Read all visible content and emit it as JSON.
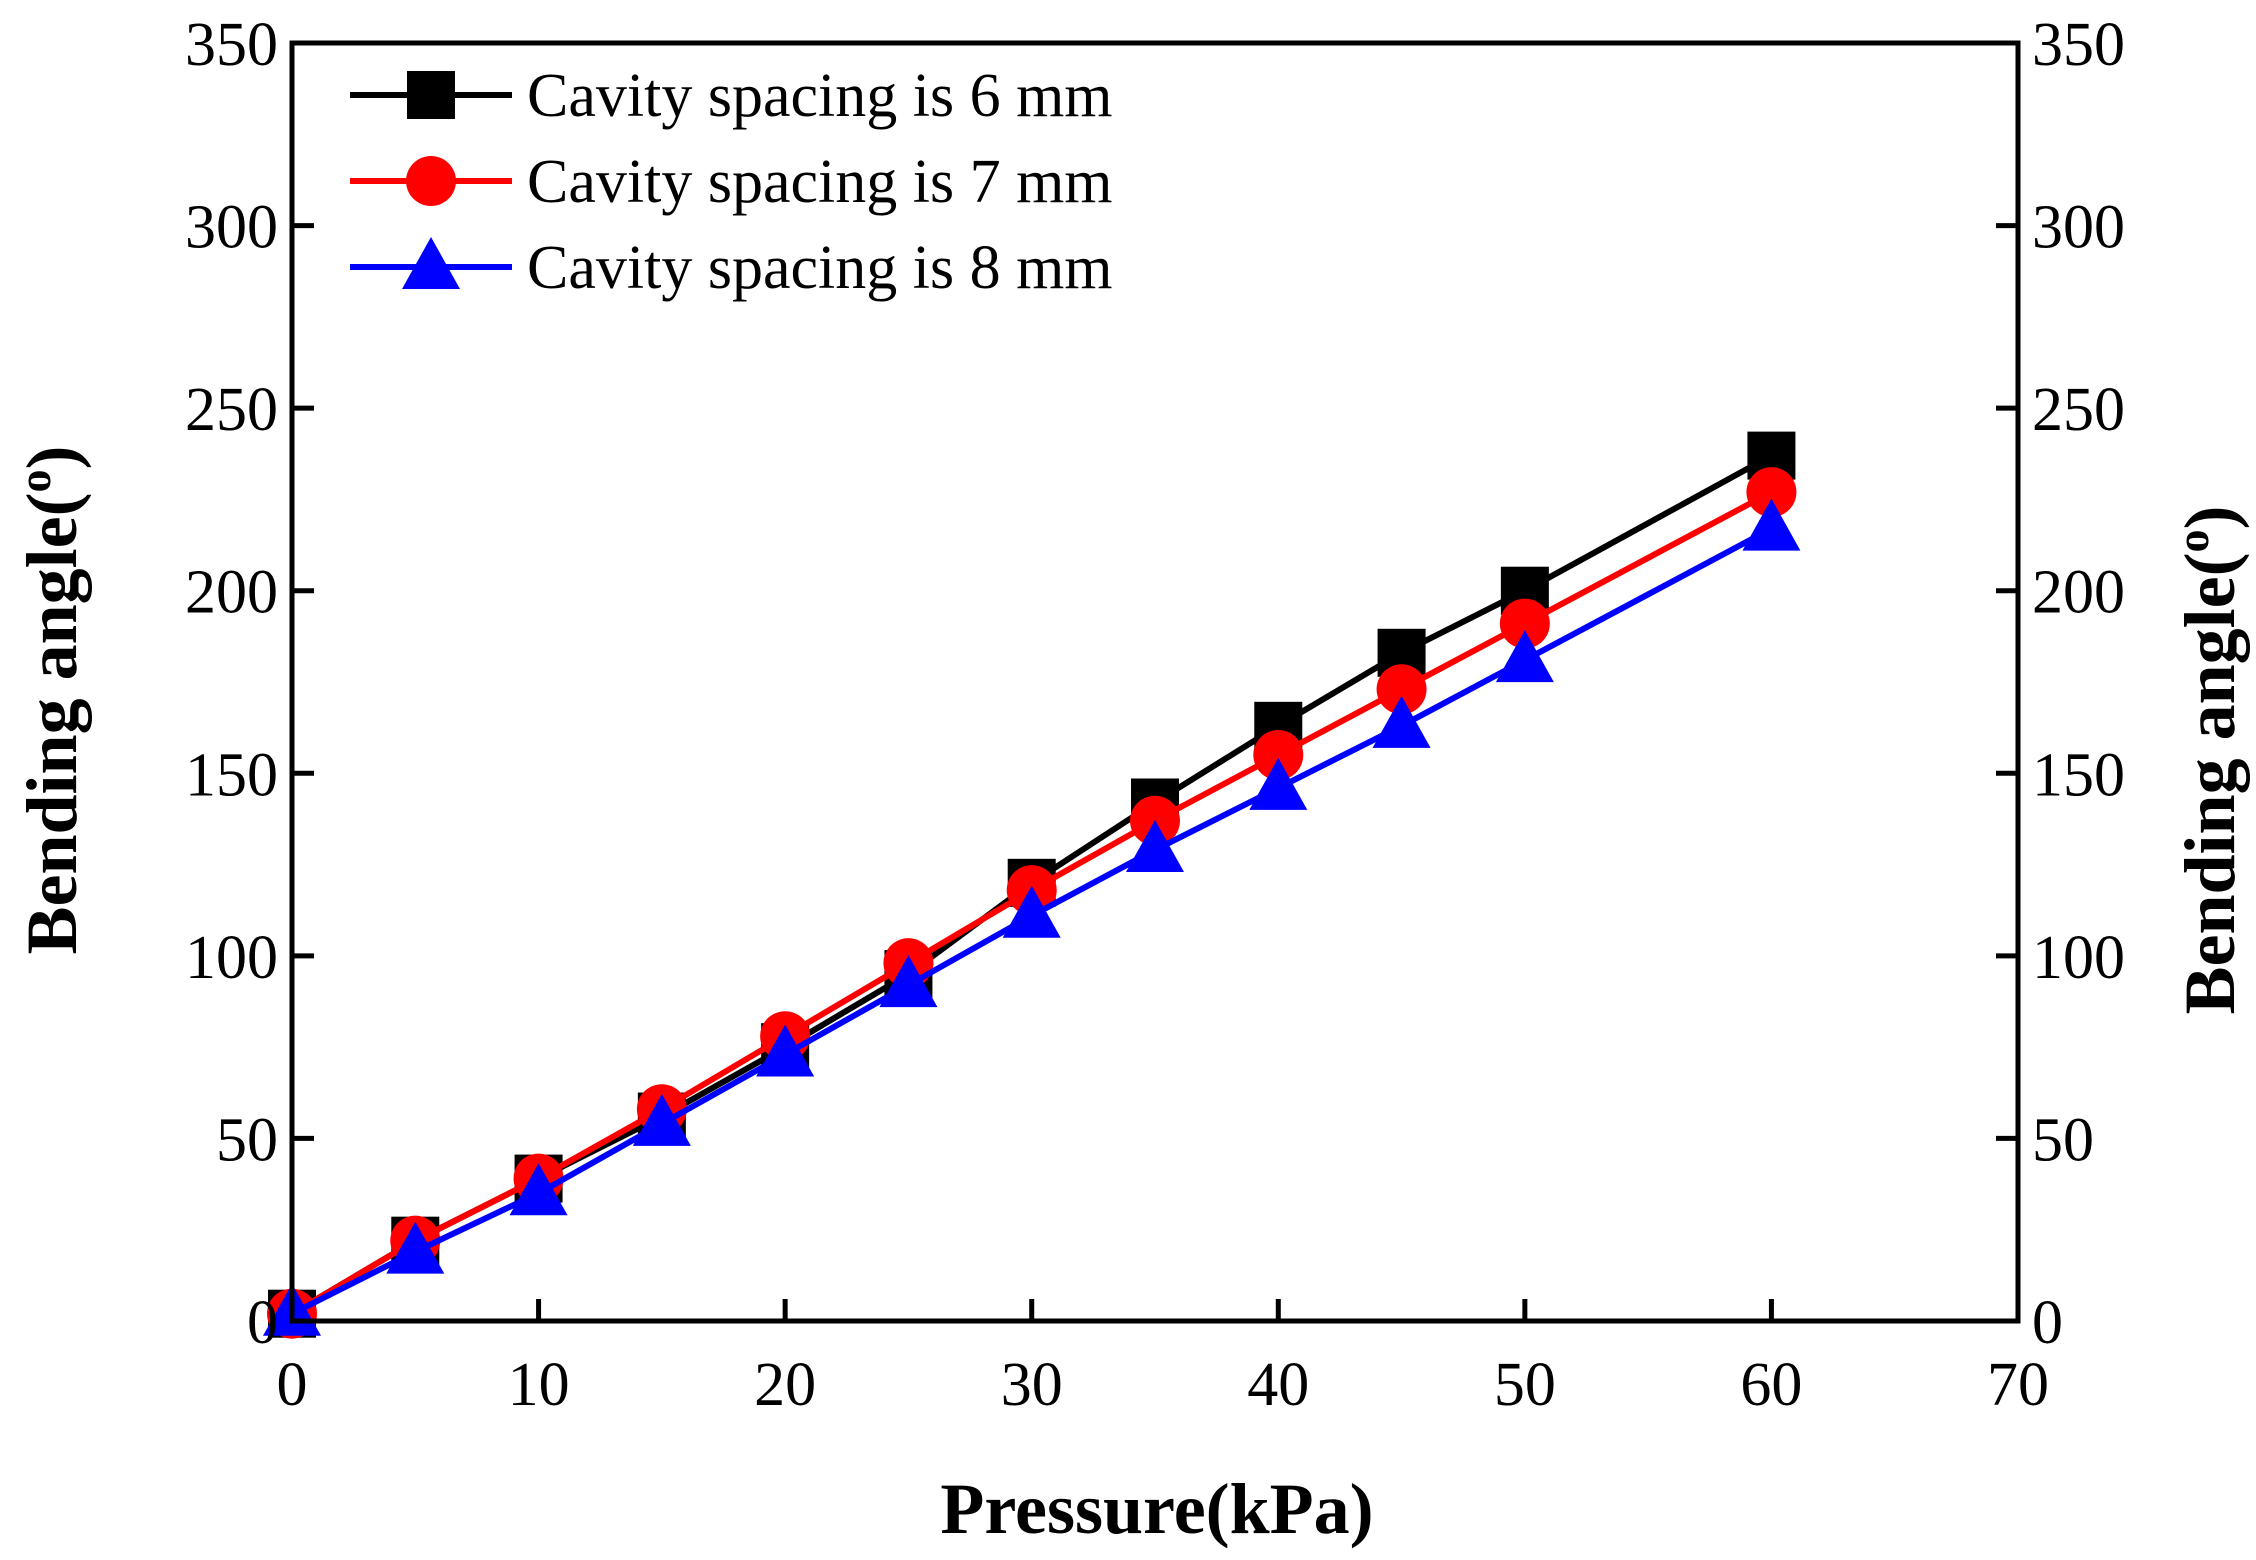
{
  "chart_data": {
    "type": "line",
    "title": "",
    "xlabel": "Pressure(kPa)",
    "ylabel_left": "Bending angle(",
    "ylabel_right": "Bending angle(",
    "ylabel_sup": "o",
    "ylabel_close": ")",
    "xlim": [
      0,
      70
    ],
    "ylim": [
      0,
      350
    ],
    "xticks": [
      0,
      10,
      20,
      30,
      40,
      50,
      60,
      70
    ],
    "xtick_labels": [
      "0",
      "10",
      "20",
      "30",
      "40",
      "50",
      "60",
      "70"
    ],
    "yticks": [
      0,
      50,
      100,
      150,
      200,
      250,
      300,
      350
    ],
    "ytick_labels": [
      "0",
      "50",
      "100",
      "150",
      "200",
      "250",
      "300",
      "350"
    ],
    "grid": false,
    "legend_position": "top-left",
    "series": [
      {
        "name": "Cavity spacing is 6 mm",
        "color": "#000000",
        "marker": "square",
        "x": [
          0,
          5,
          10,
          15,
          20,
          25,
          30,
          35,
          40,
          45,
          50,
          60
        ],
        "values": [
          2,
          22,
          39,
          56,
          75,
          95,
          120,
          142,
          163,
          183,
          200,
          237
        ]
      },
      {
        "name": "Cavity spacing is 7 mm",
        "color": "#ff0000",
        "marker": "circle",
        "x": [
          0,
          5,
          10,
          15,
          20,
          25,
          30,
          35,
          40,
          45,
          50,
          60
        ],
        "values": [
          2,
          22,
          39,
          58,
          78,
          98,
          118,
          137,
          155,
          173,
          191,
          227
        ]
      },
      {
        "name": "Cavity spacing is 8 mm",
        "color": "#0000ff",
        "marker": "triangle",
        "x": [
          0,
          5,
          10,
          15,
          20,
          25,
          30,
          35,
          40,
          45,
          50,
          60
        ],
        "values": [
          2,
          19,
          35,
          54,
          73,
          92,
          111,
          129,
          146,
          163,
          181,
          217
        ]
      }
    ]
  }
}
